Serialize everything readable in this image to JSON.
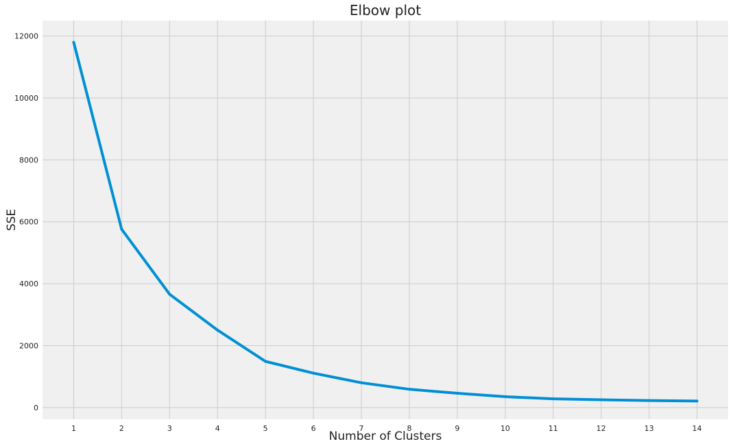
{
  "chart_data": {
    "type": "line",
    "title": "Elbow plot",
    "xlabel": "Number of Clusters",
    "ylabel": "SSE",
    "x": [
      1,
      2,
      3,
      4,
      5,
      6,
      7,
      8,
      9,
      10,
      11,
      12,
      13,
      14
    ],
    "series": [
      {
        "values": [
          11800,
          5760,
          3660,
          2500,
          1490,
          1110,
          800,
          590,
          460,
          350,
          280,
          250,
          225,
          210
        ]
      }
    ],
    "xticks": [
      1,
      2,
      3,
      4,
      5,
      6,
      7,
      8,
      9,
      10,
      11,
      12,
      13,
      14
    ],
    "yticks": [
      0,
      2000,
      4000,
      6000,
      8000,
      10000,
      12000
    ],
    "xlim": [
      0.35,
      14.65
    ],
    "ylim": [
      -380,
      12500
    ],
    "grid": true,
    "legend": "none"
  },
  "colors": {
    "line": "#008fd5",
    "plot_background": "#f0f0f0",
    "grid": "#cbcbcb",
    "text": "#222222"
  }
}
